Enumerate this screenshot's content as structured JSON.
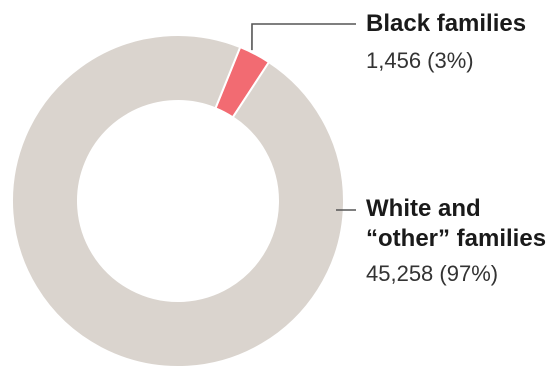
{
  "chart_data": {
    "type": "pie",
    "donut": true,
    "series": [
      {
        "name": "Black families",
        "value": 1456,
        "display_value": "1,456 (3%)",
        "color": "#f26b72"
      },
      {
        "name": "White and “other” families",
        "name_lines": [
          "White and",
          "“other” families"
        ],
        "value": 45258,
        "display_value": "45,258 (97%)",
        "color": "#dad4ce"
      }
    ],
    "legend_placement": "right",
    "title": "",
    "xlabel": "",
    "ylabel": ""
  },
  "colors": {
    "leader_line": "#555555",
    "slice_gap": "#ffffff"
  }
}
